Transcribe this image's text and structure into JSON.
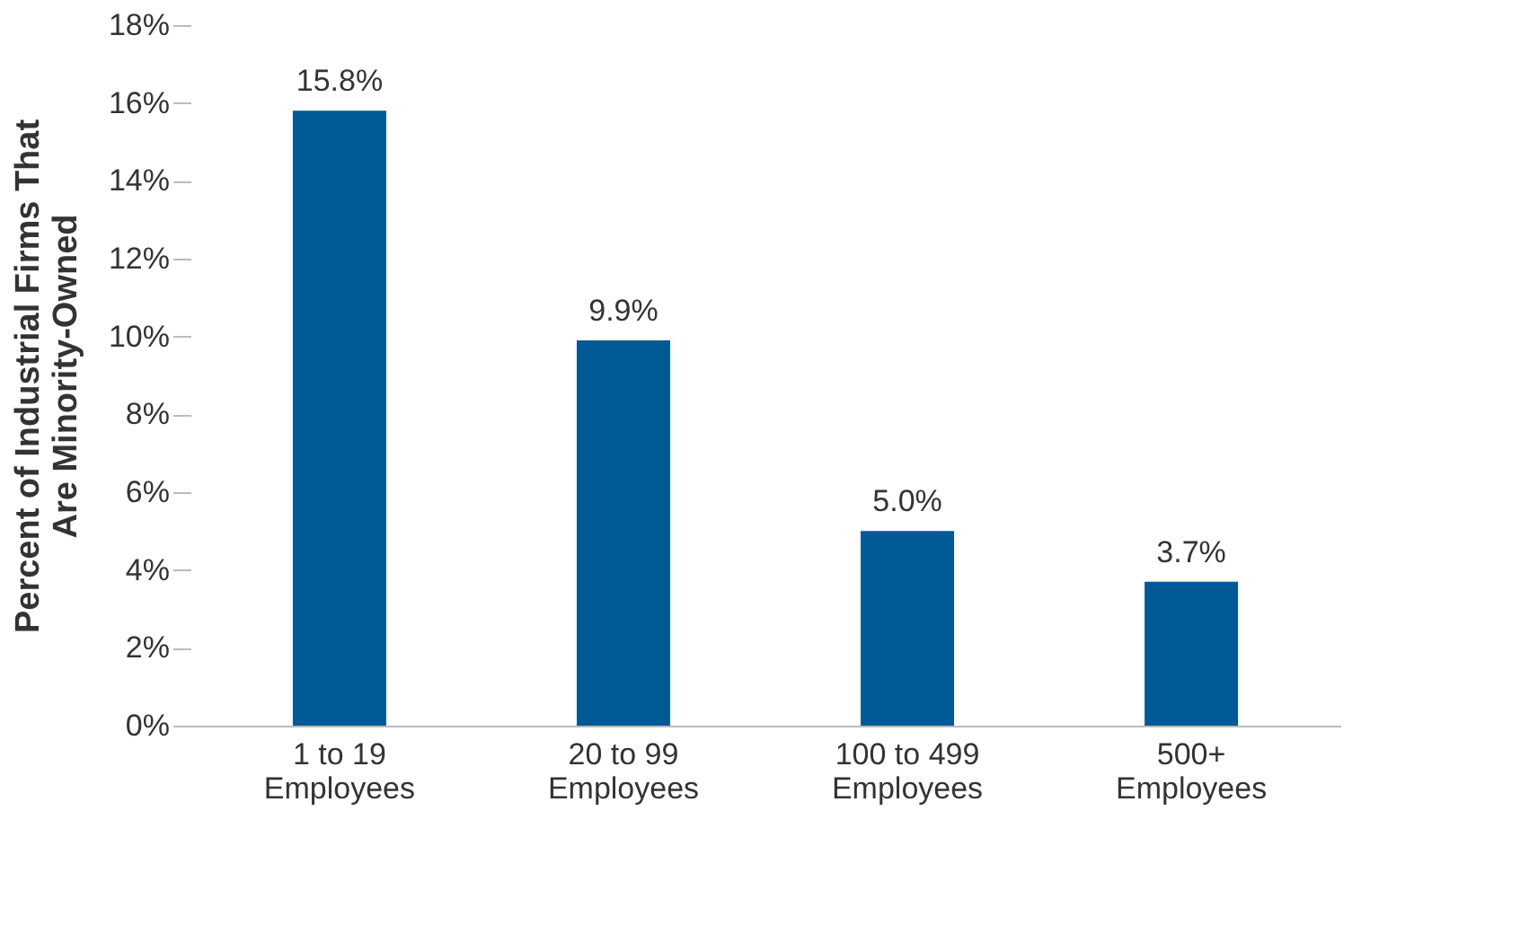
{
  "chart_data": {
    "type": "bar",
    "ylabel": "Percent of Industrial  Firms That\nAre Minority-Owned",
    "categories": [
      "1 to 19\nEmployees",
      "20 to 99\nEmployees",
      "100 to 499\nEmployees",
      "500+\nEmployees"
    ],
    "values": [
      15.8,
      9.9,
      5.0,
      3.7
    ],
    "color": "#005a96",
    "value_labels": [
      "15.8%",
      "9.9%",
      "5.0%",
      "3.7%"
    ],
    "ylim": [
      0,
      18
    ],
    "yticks": [
      {
        "value": 0,
        "label": "0%"
      },
      {
        "value": 2,
        "label": "2%"
      },
      {
        "value": 4,
        "label": "4%"
      },
      {
        "value": 6,
        "label": "6%"
      },
      {
        "value": 8,
        "label": "8%"
      },
      {
        "value": 10,
        "label": "10%"
      },
      {
        "value": 12,
        "label": "12%"
      },
      {
        "value": 14,
        "label": "14%"
      },
      {
        "value": 16,
        "label": "16%"
      },
      {
        "value": 18,
        "label": "18%"
      }
    ],
    "grid": false
  }
}
